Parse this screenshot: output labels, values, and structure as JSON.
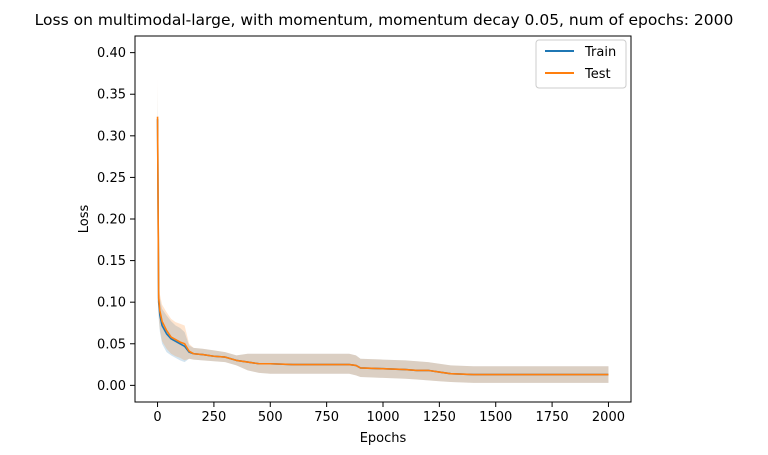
{
  "chart_data": {
    "type": "line",
    "title": "Loss on multimodal-large, with momentum, momentum decay 0.05, num of epochs: 2000",
    "xlabel": "Epochs",
    "ylabel": "Loss",
    "xlim": [
      -100,
      2100
    ],
    "ylim": [
      -0.02,
      0.42
    ],
    "xticks": [
      0,
      250,
      500,
      750,
      1000,
      1250,
      1500,
      1750,
      2000
    ],
    "yticks": [
      0.0,
      0.05,
      0.1,
      0.15,
      0.2,
      0.25,
      0.3,
      0.35,
      0.4
    ],
    "ytick_labels": [
      "0.00",
      "0.05",
      "0.10",
      "0.15",
      "0.20",
      "0.25",
      "0.30",
      "0.35",
      "0.40"
    ],
    "grid": false,
    "legend_position": "top-right",
    "series": [
      {
        "name": "Train",
        "color": "#1f77b4",
        "band_color": "#1f77b4",
        "x": [
          0,
          5,
          10,
          20,
          40,
          60,
          80,
          100,
          120,
          140,
          160,
          200,
          250,
          300,
          350,
          400,
          450,
          500,
          600,
          700,
          800,
          850,
          880,
          900,
          1000,
          1100,
          1150,
          1200,
          1250,
          1300,
          1400,
          1500,
          1600,
          1700,
          1800,
          1900,
          2000
        ],
        "y": [
          0.32,
          0.1,
          0.085,
          0.072,
          0.062,
          0.056,
          0.053,
          0.05,
          0.047,
          0.04,
          0.038,
          0.037,
          0.035,
          0.034,
          0.03,
          0.028,
          0.026,
          0.026,
          0.025,
          0.025,
          0.025,
          0.025,
          0.024,
          0.021,
          0.02,
          0.019,
          0.018,
          0.018,
          0.016,
          0.014,
          0.013,
          0.013,
          0.013,
          0.013,
          0.013,
          0.013,
          0.013
        ],
        "lower": [
          0.28,
          0.08,
          0.065,
          0.05,
          0.04,
          0.036,
          0.033,
          0.03,
          0.028,
          0.032,
          0.031,
          0.03,
          0.029,
          0.028,
          0.024,
          0.018,
          0.015,
          0.014,
          0.014,
          0.014,
          0.014,
          0.014,
          0.012,
          0.01,
          0.009,
          0.008,
          0.007,
          0.006,
          0.005,
          0.004,
          0.003,
          0.003,
          0.003,
          0.003,
          0.003,
          0.003,
          0.003
        ],
        "upper": [
          0.36,
          0.12,
          0.105,
          0.092,
          0.084,
          0.077,
          0.072,
          0.069,
          0.064,
          0.048,
          0.045,
          0.044,
          0.042,
          0.04,
          0.036,
          0.038,
          0.038,
          0.038,
          0.038,
          0.038,
          0.038,
          0.038,
          0.036,
          0.032,
          0.031,
          0.03,
          0.029,
          0.028,
          0.026,
          0.024,
          0.023,
          0.023,
          0.023,
          0.023,
          0.023,
          0.023,
          0.023
        ]
      },
      {
        "name": "Test",
        "color": "#ff7f0e",
        "band_color": "#ff7f0e",
        "x": [
          0,
          5,
          10,
          20,
          40,
          60,
          80,
          100,
          120,
          140,
          160,
          200,
          250,
          300,
          350,
          400,
          450,
          500,
          600,
          700,
          800,
          850,
          880,
          900,
          1000,
          1100,
          1150,
          1200,
          1250,
          1300,
          1400,
          1500,
          1600,
          1700,
          1800,
          1900,
          2000
        ],
        "y": [
          0.323,
          0.105,
          0.09,
          0.077,
          0.066,
          0.058,
          0.055,
          0.052,
          0.05,
          0.041,
          0.038,
          0.037,
          0.035,
          0.034,
          0.03,
          0.028,
          0.026,
          0.026,
          0.025,
          0.025,
          0.025,
          0.025,
          0.024,
          0.021,
          0.02,
          0.019,
          0.018,
          0.018,
          0.016,
          0.014,
          0.013,
          0.013,
          0.013,
          0.013,
          0.013,
          0.013,
          0.013
        ],
        "lower": [
          0.29,
          0.085,
          0.068,
          0.053,
          0.044,
          0.038,
          0.035,
          0.033,
          0.03,
          0.032,
          0.031,
          0.03,
          0.029,
          0.028,
          0.024,
          0.018,
          0.015,
          0.014,
          0.014,
          0.014,
          0.014,
          0.014,
          0.012,
          0.01,
          0.009,
          0.008,
          0.007,
          0.006,
          0.005,
          0.004,
          0.003,
          0.003,
          0.003,
          0.003,
          0.003,
          0.003,
          0.003
        ],
        "upper": [
          0.37,
          0.125,
          0.11,
          0.097,
          0.088,
          0.08,
          0.076,
          0.074,
          0.072,
          0.05,
          0.045,
          0.044,
          0.042,
          0.04,
          0.036,
          0.038,
          0.038,
          0.038,
          0.038,
          0.038,
          0.038,
          0.038,
          0.036,
          0.032,
          0.031,
          0.03,
          0.029,
          0.028,
          0.026,
          0.024,
          0.023,
          0.023,
          0.023,
          0.023,
          0.023,
          0.023,
          0.023
        ]
      }
    ]
  }
}
